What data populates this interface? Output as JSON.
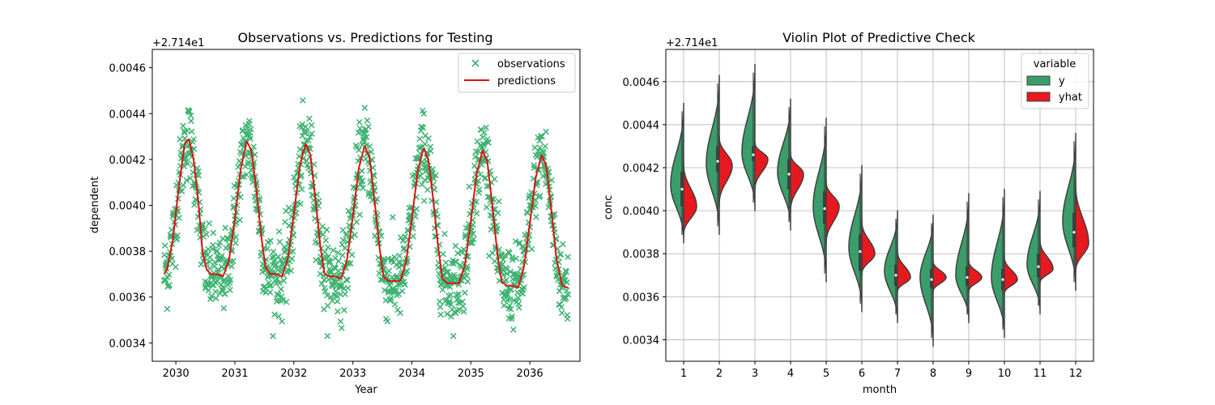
{
  "chart_data": [
    {
      "type": "scatter",
      "title": "Observations vs. Predictions for Testing",
      "xlabel": "Year",
      "ylabel": "dependent",
      "offset_label": "+2.714e1",
      "xlim": [
        2029.6,
        2036.85
      ],
      "ylim": [
        0.00332,
        0.00468
      ],
      "xticks": [
        "2030",
        "2031",
        "2032",
        "2033",
        "2034",
        "2035",
        "2036"
      ],
      "yticks": [
        "0.0034",
        "0.0036",
        "0.0038",
        "0.0040",
        "0.0042",
        "0.0044",
        "0.0046"
      ],
      "legend": {
        "placement": "top-right",
        "entries": [
          "observations",
          "predictions"
        ]
      },
      "series": [
        {
          "name": "observations",
          "marker": "x",
          "color": "#3cb371",
          "x_range": [
            2029.8,
            2036.65
          ],
          "y_range": [
            0.00343,
            0.00462
          ]
        },
        {
          "name": "predictions",
          "type": "line",
          "color": "#e01010",
          "x": [
            2029.8,
            2029.85,
            2029.95,
            2030.05,
            2030.15,
            2030.22,
            2030.3,
            2030.38,
            2030.45,
            2030.52,
            2030.6,
            2030.7,
            2030.8,
            2030.9,
            2031.0,
            2031.1,
            2031.2,
            2031.28,
            2031.36,
            2031.45,
            2031.52,
            2031.6,
            2031.7,
            2031.8,
            2031.9,
            2032.0,
            2032.1,
            2032.2,
            2032.28,
            2032.36,
            2032.45,
            2032.52,
            2032.6,
            2032.7,
            2032.8,
            2032.9,
            2033.0,
            2033.1,
            2033.2,
            2033.28,
            2033.36,
            2033.45,
            2033.52,
            2033.6,
            2033.7,
            2033.8,
            2033.9,
            2034.0,
            2034.1,
            2034.2,
            2034.28,
            2034.36,
            2034.45,
            2034.52,
            2034.6,
            2034.7,
            2034.8,
            2034.9,
            2035.0,
            2035.1,
            2035.2,
            2035.28,
            2035.36,
            2035.45,
            2035.52,
            2035.6,
            2035.7,
            2035.8,
            2035.9,
            2036.0,
            2036.1,
            2036.2,
            2036.28,
            2036.36,
            2036.45,
            2036.55,
            2036.65
          ],
          "values": [
            0.0037,
            0.00372,
            0.00385,
            0.00408,
            0.00427,
            0.00429,
            0.0042,
            0.00402,
            0.0038,
            0.00372,
            0.0037,
            0.0037,
            0.00369,
            0.00376,
            0.00394,
            0.00416,
            0.00428,
            0.00424,
            0.00408,
            0.00386,
            0.00373,
            0.0037,
            0.0037,
            0.00369,
            0.00377,
            0.00396,
            0.00417,
            0.00427,
            0.00422,
            0.00404,
            0.00382,
            0.0037,
            0.00369,
            0.00369,
            0.00368,
            0.00376,
            0.00395,
            0.00416,
            0.00426,
            0.00421,
            0.00404,
            0.00382,
            0.00369,
            0.00367,
            0.00367,
            0.00367,
            0.00375,
            0.00394,
            0.00415,
            0.00425,
            0.0042,
            0.00403,
            0.00381,
            0.00368,
            0.00366,
            0.00366,
            0.00366,
            0.00374,
            0.00393,
            0.00414,
            0.00424,
            0.00419,
            0.00401,
            0.00379,
            0.00367,
            0.00365,
            0.00365,
            0.00364,
            0.00373,
            0.00392,
            0.00412,
            0.00422,
            0.00417,
            0.00399,
            0.00377,
            0.00365,
            0.00364
          ]
        }
      ]
    },
    {
      "type": "violin",
      "title": "Violin Plot of Predictive Check",
      "xlabel": "month",
      "ylabel": "conc",
      "offset_label": "+2.714e1",
      "ylim": [
        0.0033,
        0.00475
      ],
      "categories": [
        "1",
        "2",
        "3",
        "4",
        "5",
        "6",
        "7",
        "8",
        "9",
        "10",
        "11",
        "12"
      ],
      "yticks": [
        "0.0034",
        "0.0036",
        "0.0038",
        "0.0040",
        "0.0042",
        "0.0044",
        "0.0046"
      ],
      "grid": true,
      "legend": {
        "placement": "top-right",
        "title": "variable",
        "entries": [
          "y",
          "yhat"
        ]
      },
      "series": [
        {
          "name": "y",
          "color": "#3a9e6a",
          "min": [
            0.00385,
            0.00389,
            0.004,
            0.00391,
            0.00367,
            0.00353,
            0.00348,
            0.00337,
            0.00348,
            0.00341,
            0.00352,
            0.00363
          ],
          "max": [
            0.0045,
            0.00463,
            0.00468,
            0.00452,
            0.00443,
            0.00421,
            0.004,
            0.00398,
            0.00408,
            0.0041,
            0.00409,
            0.00436
          ],
          "median": [
            0.0041,
            0.00423,
            0.00426,
            0.00417,
            0.00401,
            0.00381,
            0.0037,
            0.00368,
            0.00369,
            0.00368,
            0.00374,
            0.0039
          ],
          "q1": [
            0.00402,
            0.00418,
            0.00423,
            0.0041,
            0.00394,
            0.00372,
            0.00365,
            0.00364,
            0.00365,
            0.00363,
            0.00369,
            0.00383
          ],
          "q3": [
            0.00418,
            0.0043,
            0.0043,
            0.00424,
            0.00409,
            0.00389,
            0.00375,
            0.00373,
            0.00374,
            0.00373,
            0.0038,
            0.00399
          ],
          "mode": [
            0.00412,
            0.00422,
            0.00427,
            0.00418,
            0.00402,
            0.00383,
            0.00372,
            0.00369,
            0.0037,
            0.00369,
            0.00375,
            0.00395
          ]
        },
        {
          "name": "yhat",
          "color": "#e8191e",
          "min": [
            0.00388,
            0.00402,
            0.00409,
            0.00399,
            0.00384,
            0.0037,
            0.00362,
            0.00362,
            0.00362,
            0.00361,
            0.00366,
            0.00371
          ],
          "max": [
            0.00423,
            0.00435,
            0.00432,
            0.00427,
            0.00414,
            0.00396,
            0.00382,
            0.00377,
            0.00377,
            0.00379,
            0.00387,
            0.00414
          ],
          "mode": [
            0.00402,
            0.00421,
            0.00424,
            0.00417,
            0.00402,
            0.0038,
            0.00369,
            0.00369,
            0.00369,
            0.00368,
            0.00373,
            0.00385
          ]
        }
      ]
    }
  ]
}
